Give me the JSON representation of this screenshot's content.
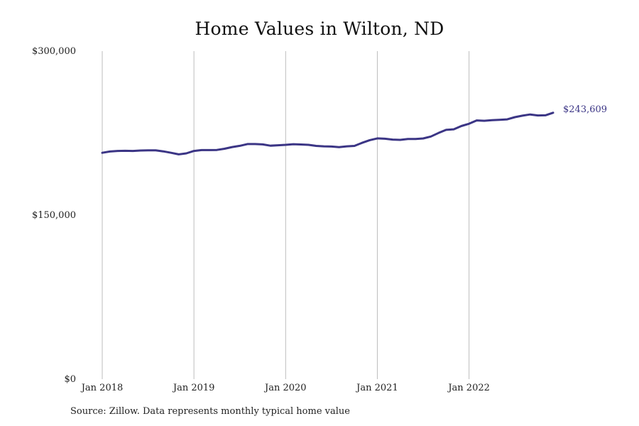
{
  "chart_data": {
    "type": "line",
    "title": "Home Values in Wilton, ND",
    "xlabel": "",
    "ylabel": "",
    "ylim": [
      0,
      300000
    ],
    "x_range": [
      "2018-01",
      "2022-12"
    ],
    "y_ticks": [
      {
        "value": 0,
        "label": "$0"
      },
      {
        "value": 150000,
        "label": "$150,000"
      },
      {
        "value": 300000,
        "label": "$300,000"
      }
    ],
    "x_ticks": [
      {
        "date": "2018-01",
        "label": "Jan 2018"
      },
      {
        "date": "2019-01",
        "label": "Jan 2019"
      },
      {
        "date": "2020-01",
        "label": "Jan 2020"
      },
      {
        "date": "2021-01",
        "label": "Jan 2021"
      },
      {
        "date": "2022-01",
        "label": "Jan 2022"
      }
    ],
    "grid": {
      "vertical": true,
      "horizontal": false
    },
    "legend": "none",
    "line_color": "#3b3585",
    "end_label": "$243,609",
    "series": [
      {
        "x": [
          "2018-01",
          "2018-02",
          "2018-03",
          "2018-04",
          "2018-05",
          "2018-06",
          "2018-07",
          "2018-08",
          "2018-09",
          "2018-10",
          "2018-11",
          "2018-12",
          "2019-01",
          "2019-02",
          "2019-03",
          "2019-04",
          "2019-05",
          "2019-06",
          "2019-07",
          "2019-08",
          "2019-09",
          "2019-10",
          "2019-11",
          "2019-12",
          "2020-01",
          "2020-02",
          "2020-03",
          "2020-04",
          "2020-05",
          "2020-06",
          "2020-07",
          "2020-08",
          "2020-09",
          "2020-10",
          "2020-11",
          "2020-12",
          "2021-01",
          "2021-02",
          "2021-03",
          "2021-04",
          "2021-05",
          "2021-06",
          "2021-07",
          "2021-08",
          "2021-09",
          "2021-10",
          "2021-11",
          "2021-12",
          "2022-01",
          "2022-02",
          "2022-03",
          "2022-04",
          "2022-05",
          "2022-06",
          "2022-07",
          "2022-08",
          "2022-09",
          "2022-10",
          "2022-11",
          "2022-12"
        ],
        "values": [
          207000,
          208200,
          208700,
          208800,
          208700,
          209100,
          209200,
          209200,
          208300,
          207000,
          205600,
          206500,
          208700,
          209500,
          209500,
          209600,
          210700,
          212300,
          213400,
          215000,
          215000,
          214700,
          213500,
          213900,
          214300,
          214900,
          214600,
          214300,
          213300,
          212900,
          212700,
          212200,
          212900,
          213300,
          216100,
          218600,
          220200,
          219900,
          219100,
          218800,
          219700,
          219600,
          220100,
          221900,
          225100,
          228000,
          228500,
          231500,
          233600,
          236600,
          236300,
          236800,
          237200,
          237600,
          239600,
          241000,
          242100,
          241200,
          241300,
          243609
        ]
      }
    ]
  },
  "source_note": "Source: Zillow. Data represents monthly typical home value"
}
